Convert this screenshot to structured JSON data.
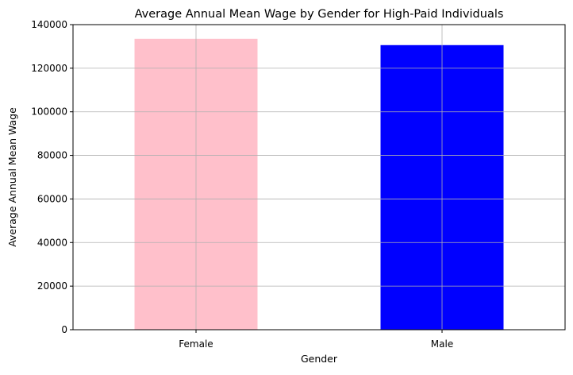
{
  "chart_data": {
    "type": "bar",
    "title": "Average Annual Mean Wage by Gender for High-Paid Individuals",
    "xlabel": "Gender",
    "ylabel": "Average Annual Mean Wage",
    "categories": [
      "Female",
      "Male"
    ],
    "values": [
      133500,
      130600
    ],
    "colors": [
      "#ffc0cb",
      "#0000ff"
    ],
    "ylim": [
      0,
      140000
    ],
    "yticks": [
      "0",
      "20000",
      "40000",
      "60000",
      "80000",
      "100000",
      "120000",
      "140000"
    ],
    "ytick_values": [
      0,
      20000,
      40000,
      60000,
      80000,
      100000,
      120000,
      140000
    ],
    "grid": true,
    "legend": "none"
  }
}
